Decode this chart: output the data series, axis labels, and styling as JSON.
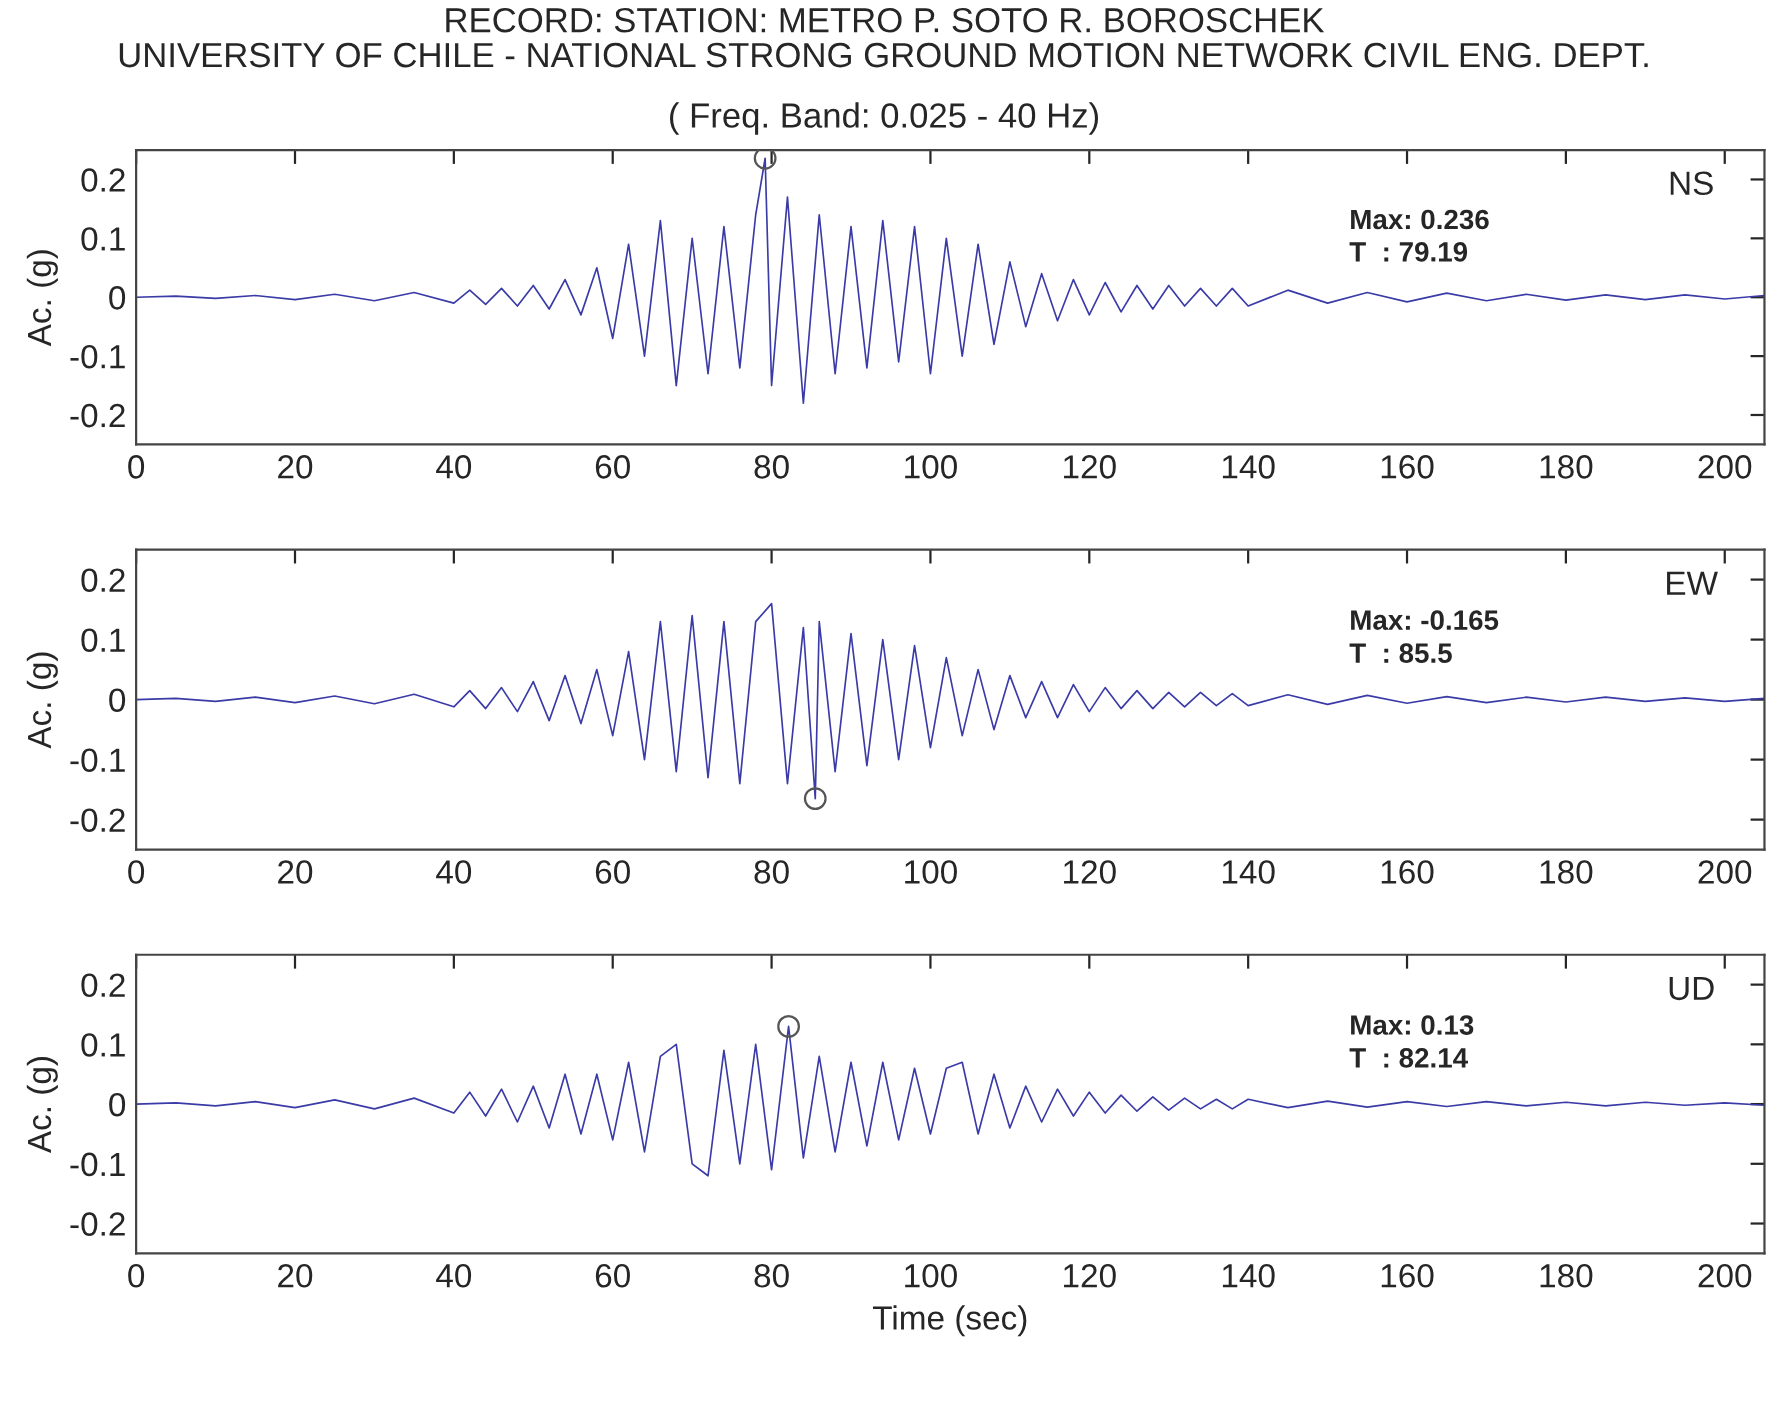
{
  "chart_data": [
    {
      "type": "line",
      "title": "RECORD: STATION: METRO P. SOTO R. BOROSCHEK\nUNIVERSITY OF CHILE - NATIONAL STRONG GROUND MOTION NETWORK CIVIL ENG. DEPT.",
      "subtitle": "( Freq. Band: 0.025 - 40 Hz)",
      "ylabel": "Ac. (g)",
      "annotations": [
        "NS",
        "Max: 0.236",
        "T  : 79.19"
      ],
      "series": [
        {
          "color": "#3b3ba8",
          "x": [
            0,
            5,
            10,
            15,
            20,
            25,
            30,
            35,
            40,
            42,
            44,
            46,
            48,
            50,
            52,
            54,
            56,
            58,
            60,
            62,
            64,
            66,
            68,
            70,
            72,
            74,
            76,
            78,
            79.19,
            80,
            82,
            84,
            86,
            88,
            90,
            92,
            94,
            96,
            98,
            100,
            102,
            104,
            106,
            108,
            110,
            112,
            114,
            116,
            118,
            120,
            122,
            124,
            126,
            128,
            130,
            132,
            134,
            136,
            138,
            140,
            145,
            150,
            155,
            160,
            165,
            170,
            175,
            180,
            185,
            190,
            195,
            200,
            205
          ],
          "values": [
            0,
            0.002,
            -0.002,
            0.003,
            -0.004,
            0.005,
            -0.006,
            0.008,
            -0.01,
            0.012,
            -0.012,
            0.015,
            -0.015,
            0.02,
            -0.02,
            0.03,
            -0.03,
            0.05,
            -0.07,
            0.09,
            -0.1,
            0.13,
            -0.15,
            0.1,
            -0.13,
            0.12,
            -0.12,
            0.14,
            0.236,
            -0.15,
            0.17,
            -0.18,
            0.14,
            -0.13,
            0.12,
            -0.12,
            0.13,
            -0.11,
            0.12,
            -0.13,
            0.1,
            -0.1,
            0.09,
            -0.08,
            0.06,
            -0.05,
            0.04,
            -0.04,
            0.03,
            -0.03,
            0.025,
            -0.025,
            0.02,
            -0.02,
            0.02,
            -0.015,
            0.015,
            -0.015,
            0.015,
            -0.015,
            0.012,
            -0.01,
            0.008,
            -0.008,
            0.007,
            -0.006,
            0.005,
            -0.005,
            0.004,
            -0.004,
            0.004,
            -0.003,
            0.003
          ]
        },
        {
          "type": "scatter",
          "marker": "circle",
          "color": "#555555",
          "x": [
            79.19
          ],
          "values": [
            0.236
          ]
        }
      ],
      "xlim": [
        0,
        205
      ],
      "ylim": [
        -0.25,
        0.25
      ],
      "xticks": [
        0,
        20,
        40,
        60,
        80,
        100,
        120,
        140,
        160,
        180,
        200
      ],
      "yticks": [
        -0.2,
        -0.1,
        0,
        0.1,
        0.2
      ],
      "grid": false,
      "legend": false
    },
    {
      "type": "line",
      "ylabel": "Ac. (g)",
      "annotations": [
        "EW",
        "Max: -0.165",
        "T  : 85.5"
      ],
      "series": [
        {
          "color": "#3b3ba8",
          "x": [
            0,
            5,
            10,
            15,
            20,
            25,
            30,
            35,
            40,
            42,
            44,
            46,
            48,
            50,
            52,
            54,
            56,
            58,
            60,
            62,
            64,
            66,
            68,
            70,
            72,
            74,
            76,
            78,
            80,
            82,
            84,
            85.5,
            86,
            88,
            90,
            92,
            94,
            96,
            98,
            100,
            102,
            104,
            106,
            108,
            110,
            112,
            114,
            116,
            118,
            120,
            122,
            124,
            126,
            128,
            130,
            132,
            134,
            136,
            138,
            140,
            145,
            150,
            155,
            160,
            165,
            170,
            175,
            180,
            185,
            190,
            195,
            200,
            205
          ],
          "values": [
            0,
            0.002,
            -0.003,
            0.004,
            -0.005,
            0.006,
            -0.007,
            0.009,
            -0.012,
            0.015,
            -0.015,
            0.02,
            -0.02,
            0.03,
            -0.035,
            0.04,
            -0.04,
            0.05,
            -0.06,
            0.08,
            -0.1,
            0.13,
            -0.12,
            0.14,
            -0.13,
            0.13,
            -0.14,
            0.13,
            0.16,
            -0.14,
            0.12,
            -0.165,
            0.13,
            -0.12,
            0.11,
            -0.11,
            0.1,
            -0.1,
            0.09,
            -0.08,
            0.07,
            -0.06,
            0.05,
            -0.05,
            0.04,
            -0.03,
            0.03,
            -0.03,
            0.025,
            -0.02,
            0.02,
            -0.015,
            0.015,
            -0.015,
            0.012,
            -0.012,
            0.012,
            -0.01,
            0.01,
            -0.01,
            0.008,
            -0.008,
            0.007,
            -0.006,
            0.005,
            -0.005,
            0.004,
            -0.004,
            0.004,
            -0.003,
            0.003,
            -0.003,
            0.002
          ]
        },
        {
          "type": "scatter",
          "marker": "circle",
          "color": "#555555",
          "x": [
            85.5
          ],
          "values": [
            -0.165
          ]
        }
      ],
      "xlim": [
        0,
        205
      ],
      "ylim": [
        -0.25,
        0.25
      ],
      "xticks": [
        0,
        20,
        40,
        60,
        80,
        100,
        120,
        140,
        160,
        180,
        200
      ],
      "yticks": [
        -0.2,
        -0.1,
        0,
        0.1,
        0.2
      ],
      "grid": false,
      "legend": false
    },
    {
      "type": "line",
      "xlabel": "Time (sec)",
      "ylabel": "Ac. (g)",
      "annotations": [
        "UD",
        "Max: 0.13",
        "T  : 82.14"
      ],
      "series": [
        {
          "color": "#3b3ba8",
          "x": [
            0,
            5,
            10,
            15,
            20,
            25,
            30,
            35,
            40,
            42,
            44,
            46,
            48,
            50,
            52,
            54,
            56,
            58,
            60,
            62,
            64,
            66,
            68,
            70,
            72,
            74,
            76,
            78,
            80,
            82.14,
            84,
            86,
            88,
            90,
            92,
            94,
            96,
            98,
            100,
            102,
            104,
            106,
            108,
            110,
            112,
            114,
            116,
            118,
            120,
            122,
            124,
            126,
            128,
            130,
            132,
            134,
            136,
            138,
            140,
            145,
            150,
            155,
            160,
            165,
            170,
            175,
            180,
            185,
            190,
            195,
            200,
            205
          ],
          "values": [
            0,
            0.002,
            -0.003,
            0.004,
            -0.006,
            0.007,
            -0.008,
            0.01,
            -0.015,
            0.02,
            -0.02,
            0.025,
            -0.03,
            0.03,
            -0.04,
            0.05,
            -0.05,
            0.05,
            -0.06,
            0.07,
            -0.08,
            0.08,
            0.1,
            -0.1,
            -0.12,
            0.09,
            -0.1,
            0.1,
            -0.11,
            0.13,
            -0.09,
            0.08,
            -0.08,
            0.07,
            -0.07,
            0.07,
            -0.06,
            0.06,
            -0.05,
            0.06,
            0.07,
            -0.05,
            0.05,
            -0.04,
            0.03,
            -0.03,
            0.025,
            -0.02,
            0.02,
            -0.015,
            0.015,
            -0.012,
            0.012,
            -0.01,
            0.01,
            -0.008,
            0.008,
            -0.008,
            0.008,
            -0.006,
            0.005,
            -0.005,
            0.004,
            -0.004,
            0.004,
            -0.003,
            0.003,
            -0.003,
            0.003,
            -0.002,
            0.002,
            -0.002
          ]
        },
        {
          "type": "scatter",
          "marker": "circle",
          "color": "#555555",
          "x": [
            82.14
          ],
          "values": [
            0.13
          ]
        }
      ],
      "xlim": [
        0,
        205
      ],
      "ylim": [
        -0.25,
        0.25
      ],
      "xticks": [
        0,
        20,
        40,
        60,
        80,
        100,
        120,
        140,
        160,
        180,
        200
      ],
      "yticks": [
        -0.2,
        -0.1,
        0,
        0.1,
        0.2
      ],
      "grid": false,
      "legend": false
    }
  ]
}
